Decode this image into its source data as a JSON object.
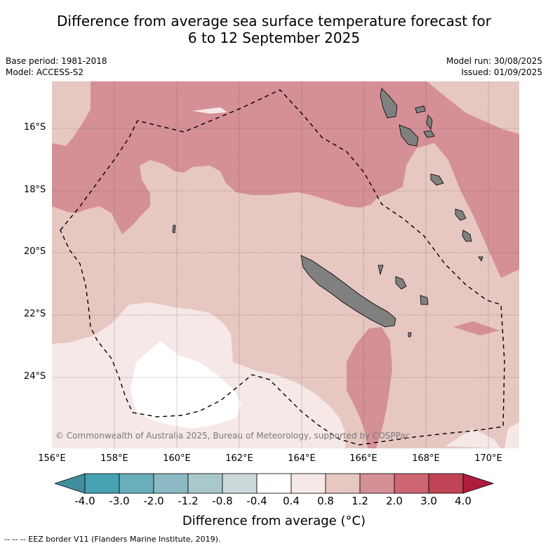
{
  "header": {
    "title_line1": "Difference from average sea surface temperature forecast for",
    "title_line2": "6 to 12 September 2025",
    "base_period": "Base period: 1981-2018",
    "model": "Model: ACCESS-S2",
    "model_run": "Model run: 30/08/2025",
    "issued": "Issued: 01/09/2025"
  },
  "map": {
    "lat_labels": [
      "16°S",
      "18°S",
      "20°S",
      "22°S",
      "24°S"
    ],
    "lon_labels": [
      "156°E",
      "158°E",
      "160°E",
      "162°E",
      "164°E",
      "166°E",
      "168°E",
      "170°E"
    ],
    "copyright": "© Commonwealth of Australia 2025, Bureau of Meteorology, supported by COSPPac",
    "colors": {
      "band_0_4_0_8": "#f5e8e6",
      "band_0_8_1_2": "#e7c7c2",
      "band_1_2_2_0": "#d58f97",
      "zero_band": "#ffffff",
      "land": "#808080",
      "eez_line": "#000000"
    },
    "eez_line_style": "dashed"
  },
  "colorbar": {
    "label": "Difference from average (°C)",
    "ticks": [
      "-4.0",
      "-3.0",
      "-2.0",
      "-1.2",
      "-0.8",
      "-0.4",
      "0.4",
      "0.8",
      "1.2",
      "2.0",
      "3.0",
      "4.0"
    ],
    "colors": [
      "#3f8e9b",
      "#46a2b1",
      "#6aaebb",
      "#8cb9c4",
      "#a9c8cc",
      "#cbd8da",
      "#ffffff",
      "#f5e8e6",
      "#e7c7c2",
      "#d58f97",
      "#cd6671",
      "#c04455",
      "#b01c3c"
    ]
  },
  "footnote": "--  --  -- EEZ border V11 (Flanders Marine Institute, 2019)."
}
